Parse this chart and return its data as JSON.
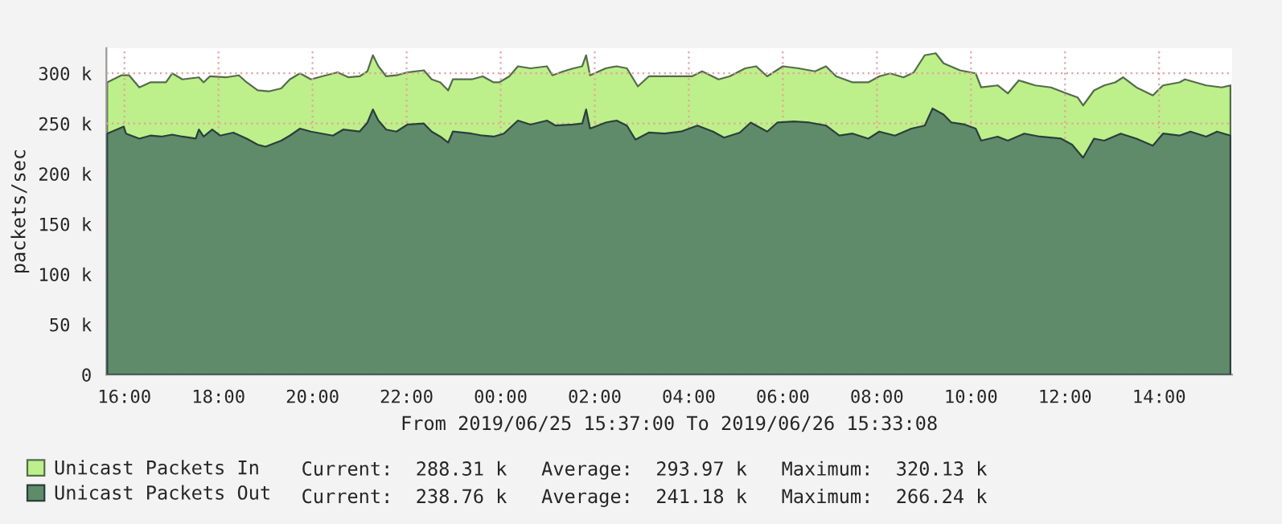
{
  "chart_data": {
    "type": "area",
    "xlabel": "From 2019/06/25 15:37:00 To 2019/06/26 15:33:08",
    "ylabel": "packets/sec",
    "xlim": [
      "2019-06-25T15:37",
      "2019-06-26T15:33"
    ],
    "xticks": [
      {
        "value": "2019-06-25T16:00",
        "label": "16:00"
      },
      {
        "value": "2019-06-25T18:00",
        "label": "18:00"
      },
      {
        "value": "2019-06-25T20:00",
        "label": "20:00"
      },
      {
        "value": "2019-06-25T22:00",
        "label": "22:00"
      },
      {
        "value": "2019-06-26T00:00",
        "label": "00:00"
      },
      {
        "value": "2019-06-26T02:00",
        "label": "02:00"
      },
      {
        "value": "2019-06-26T04:00",
        "label": "04:00"
      },
      {
        "value": "2019-06-26T06:00",
        "label": "06:00"
      },
      {
        "value": "2019-06-26T08:00",
        "label": "08:00"
      },
      {
        "value": "2019-06-26T10:00",
        "label": "10:00"
      },
      {
        "value": "2019-06-26T12:00",
        "label": "12:00"
      },
      {
        "value": "2019-06-26T14:00",
        "label": "14:00"
      }
    ],
    "ylim": [
      0,
      325
    ],
    "yticks": [
      0,
      {
        "value": 50,
        "label": "50 k"
      },
      {
        "value": 100,
        "label": "100 k"
      },
      {
        "value": 150,
        "label": "150 k"
      },
      {
        "value": 200,
        "label": "200 k"
      },
      {
        "value": 250,
        "label": "250 k"
      },
      {
        "value": 300,
        "label": "300 k"
      }
    ],
    "grid": true,
    "legend": "bottom",
    "series": [
      {
        "name": "Unicast Packets In",
        "color": "#bdf08a",
        "x": [
          "2019-06-25T15:38",
          "2019-06-25T15:56",
          "2019-06-25T16:06",
          "2019-06-25T16:19",
          "2019-06-25T16:33",
          "2019-06-25T16:53",
          "2019-06-25T17:01",
          "2019-06-25T17:14",
          "2019-06-25T17:35",
          "2019-06-25T17:41",
          "2019-06-25T17:49",
          "2019-06-25T18:09",
          "2019-06-25T18:26",
          "2019-06-25T18:36",
          "2019-06-25T18:50",
          "2019-06-25T19:04",
          "2019-06-25T19:20",
          "2019-06-25T19:31",
          "2019-06-25T19:44",
          "2019-06-25T19:58",
          "2019-06-25T20:12",
          "2019-06-25T20:32",
          "2019-06-25T20:46",
          "2019-06-25T21:00",
          "2019-06-25T21:10",
          "2019-06-25T21:17",
          "2019-06-25T21:24",
          "2019-06-25T21:34",
          "2019-06-25T21:47",
          "2019-06-25T22:01",
          "2019-06-25T22:22",
          "2019-06-25T22:32",
          "2019-06-25T22:43",
          "2019-06-25T22:53",
          "2019-06-25T22:59",
          "2019-06-25T23:23",
          "2019-06-25T23:37",
          "2019-06-25T23:51",
          "2019-06-25T23:58",
          "2019-06-26T00:11",
          "2019-06-26T00:22",
          "2019-06-26T00:38",
          "2019-06-26T00:59",
          "2019-06-26T01:06",
          "2019-06-26T01:20",
          "2019-06-26T01:33",
          "2019-06-26T01:44",
          "2019-06-26T01:49",
          "2019-06-26T01:54",
          "2019-06-26T02:14",
          "2019-06-26T02:28",
          "2019-06-26T02:41",
          "2019-06-26T02:55",
          "2019-06-26T03:09",
          "2019-06-26T03:37",
          "2019-06-26T04:04",
          "2019-06-26T04:17",
          "2019-06-26T04:38",
          "2019-06-26T04:52",
          "2019-06-26T05:12",
          "2019-06-26T05:26",
          "2019-06-26T05:40",
          "2019-06-26T06:00",
          "2019-06-26T06:20",
          "2019-06-26T06:41",
          "2019-06-26T06:55",
          "2019-06-26T07:08",
          "2019-06-26T07:29",
          "2019-06-26T07:49",
          "2019-06-26T08:03",
          "2019-06-26T08:17",
          "2019-06-26T08:34",
          "2019-06-26T08:47",
          "2019-06-26T09:01",
          "2019-06-26T09:15",
          "2019-06-26T09:25",
          "2019-06-26T09:46",
          "2019-06-26T10:06",
          "2019-06-26T10:13",
          "2019-06-26T10:34",
          "2019-06-26T10:47",
          "2019-06-26T11:01",
          "2019-06-26T11:22",
          "2019-06-26T11:42",
          "2019-06-26T12:02",
          "2019-06-26T12:16",
          "2019-06-26T12:23",
          "2019-06-26T12:37",
          "2019-06-26T12:50",
          "2019-06-26T13:04",
          "2019-06-26T13:14",
          "2019-06-26T13:31",
          "2019-06-26T13:52",
          "2019-06-26T14:05",
          "2019-06-26T14:26",
          "2019-06-26T14:33",
          "2019-06-26T15:00",
          "2019-06-26T15:20",
          "2019-06-26T15:31"
        ],
        "values": [
          291,
          298,
          298,
          286,
          291,
          291,
          300,
          294,
          296,
          291,
          297,
          296,
          298,
          291,
          283,
          282,
          285,
          294,
          300,
          294,
          297,
          301,
          296,
          297,
          302,
          318,
          307,
          297,
          298,
          301,
          303,
          294,
          291,
          283,
          294,
          294,
          297,
          291,
          291,
          297,
          307,
          305,
          307,
          298,
          302,
          305,
          307,
          318,
          298,
          305,
          307,
          305,
          287,
          297,
          297,
          297,
          302,
          294,
          297,
          305,
          307,
          297,
          307,
          305,
          302,
          307,
          297,
          291,
          291,
          297,
          300,
          296,
          301,
          318,
          320,
          310,
          303,
          300,
          286,
          288,
          280,
          293,
          288,
          286,
          280,
          276,
          268,
          283,
          288,
          291,
          296,
          286,
          278,
          288,
          291,
          294,
          288,
          286,
          288
        ]
      },
      {
        "name": "Unicast Packets Out",
        "color": "#5f8b6b",
        "x": [
          "2019-06-25T15:38",
          "2019-06-25T15:59",
          "2019-06-25T16:02",
          "2019-06-25T16:19",
          "2019-06-25T16:33",
          "2019-06-25T16:47",
          "2019-06-25T17:01",
          "2019-06-25T17:14",
          "2019-06-25T17:31",
          "2019-06-25T17:35",
          "2019-06-25T17:41",
          "2019-06-25T17:52",
          "2019-06-25T18:02",
          "2019-06-25T18:19",
          "2019-06-25T18:36",
          "2019-06-25T18:50",
          "2019-06-25T19:00",
          "2019-06-25T19:20",
          "2019-06-25T19:31",
          "2019-06-25T19:44",
          "2019-06-25T19:58",
          "2019-06-25T20:12",
          "2019-06-25T20:26",
          "2019-06-25T20:39",
          "2019-06-25T21:00",
          "2019-06-25T21:10",
          "2019-06-25T21:17",
          "2019-06-25T21:24",
          "2019-06-25T21:34",
          "2019-06-25T21:47",
          "2019-06-25T22:01",
          "2019-06-25T22:22",
          "2019-06-25T22:32",
          "2019-06-25T22:43",
          "2019-06-25T22:53",
          "2019-06-25T22:59",
          "2019-06-25T23:23",
          "2019-06-25T23:37",
          "2019-06-25T23:51",
          "2019-06-26T00:04",
          "2019-06-26T00:22",
          "2019-06-26T00:38",
          "2019-06-26T00:59",
          "2019-06-26T01:10",
          "2019-06-26T01:33",
          "2019-06-26T01:44",
          "2019-06-26T01:49",
          "2019-06-26T01:54",
          "2019-06-26T02:14",
          "2019-06-26T02:28",
          "2019-06-26T02:41",
          "2019-06-26T02:52",
          "2019-06-26T03:09",
          "2019-06-26T03:29",
          "2019-06-26T03:50",
          "2019-06-26T04:11",
          "2019-06-26T04:31",
          "2019-06-26T04:45",
          "2019-06-26T05:05",
          "2019-06-26T05:19",
          "2019-06-26T05:40",
          "2019-06-26T05:53",
          "2019-06-26T06:14",
          "2019-06-26T06:34",
          "2019-06-26T06:55",
          "2019-06-26T07:12",
          "2019-06-26T07:29",
          "2019-06-26T07:49",
          "2019-06-26T08:03",
          "2019-06-26T08:23",
          "2019-06-26T08:44",
          "2019-06-26T09:01",
          "2019-06-26T09:11",
          "2019-06-26T09:25",
          "2019-06-26T09:35",
          "2019-06-26T09:52",
          "2019-06-26T10:06",
          "2019-06-26T10:13",
          "2019-06-26T10:34",
          "2019-06-26T10:47",
          "2019-06-26T11:08",
          "2019-06-26T11:28",
          "2019-06-26T11:55",
          "2019-06-26T12:09",
          "2019-06-26T12:23",
          "2019-06-26T12:37",
          "2019-06-26T12:50",
          "2019-06-26T13:11",
          "2019-06-26T13:31",
          "2019-06-26T13:52",
          "2019-06-26T14:05",
          "2019-06-26T14:26",
          "2019-06-26T14:40",
          "2019-06-26T15:00",
          "2019-06-26T15:14",
          "2019-06-26T15:31"
        ],
        "values": [
          240,
          247,
          240,
          235,
          238,
          237,
          239,
          237,
          235,
          244,
          237,
          244,
          238,
          241,
          235,
          229,
          227,
          233,
          238,
          245,
          242,
          240,
          238,
          244,
          242,
          251,
          264,
          253,
          244,
          242,
          249,
          250,
          242,
          237,
          231,
          242,
          240,
          238,
          237,
          240,
          253,
          249,
          253,
          248,
          249,
          250,
          264,
          245,
          251,
          253,
          248,
          234,
          241,
          240,
          242,
          248,
          242,
          236,
          241,
          251,
          242,
          251,
          252,
          251,
          248,
          238,
          240,
          235,
          242,
          238,
          245,
          248,
          265,
          259,
          251,
          249,
          245,
          233,
          237,
          233,
          240,
          237,
          235,
          229,
          216,
          235,
          233,
          240,
          235,
          228,
          240,
          238,
          242,
          237,
          242,
          238
        ]
      }
    ],
    "annotations": [
      "Current:  288.31 k   Average:  293.97 k   Maximum:  320.13 k",
      "Current:  238.76 k   Average:  241.18 k   Maximum:  266.24 k"
    ]
  }
}
